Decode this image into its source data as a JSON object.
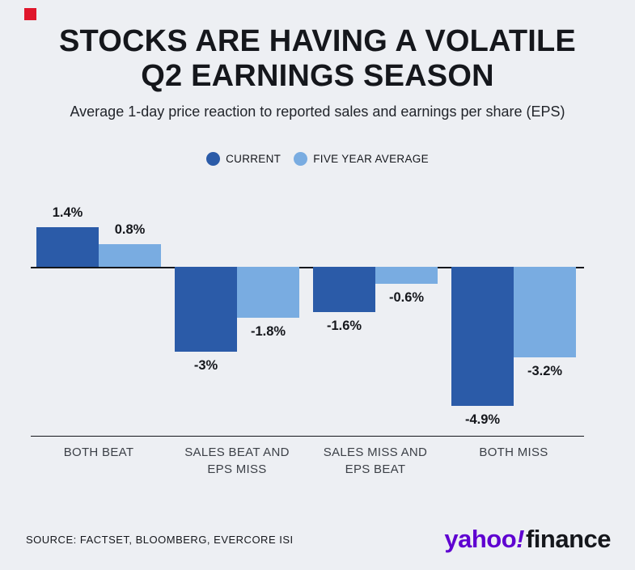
{
  "meta": {
    "background_color": "#edeff3",
    "accent_red": "#e0162b",
    "brand_purple": "#5f01d1",
    "brand_dark": "#15171c"
  },
  "header": {
    "title_lines": [
      "STOCKS ARE HAVING A VOLATILE",
      "Q2 EARNINGS SEASON"
    ],
    "subtitle": "Average 1-day price reaction to reported sales and earnings per share (EPS)"
  },
  "legend": {
    "items": [
      {
        "label": "CURRENT",
        "color": "#2b5ba8"
      },
      {
        "label": "FIVE YEAR AVERAGE",
        "color": "#79ace1"
      }
    ]
  },
  "chart_data": {
    "type": "bar",
    "title": "STOCKS ARE HAVING A VOLATILE Q2 EARNINGS SEASON",
    "subtitle": "Average 1-day price reaction to reported sales and earnings per share (EPS)",
    "categories": [
      "BOTH BEAT",
      "SALES BEAT AND EPS MISS",
      "SALES MISS AND EPS BEAT",
      "BOTH MISS"
    ],
    "series": [
      {
        "name": "CURRENT",
        "color": "#2b5ba8",
        "values": [
          1.4,
          -3,
          -1.6,
          -4.9
        ],
        "data_labels": [
          "1.4%",
          "-3%",
          "-1.6%",
          "-4.9%"
        ]
      },
      {
        "name": "FIVE YEAR AVERAGE",
        "color": "#79ace1",
        "values": [
          0.8,
          -1.8,
          -0.6,
          -3.2
        ],
        "data_labels": [
          "0.8%",
          "-1.8%",
          "-0.6%",
          "-3.2%"
        ]
      }
    ],
    "unit": "%",
    "ylim": [
      -5.6,
      2.4
    ],
    "grid": false,
    "legend_position": "top",
    "baseline": 0
  },
  "footer": {
    "source": "SOURCE: FACTSET, BLOOMBERG, EVERCORE ISI",
    "brand": {
      "yahoo": "yahoo",
      "exclamation": "!",
      "finance": "finance"
    }
  }
}
